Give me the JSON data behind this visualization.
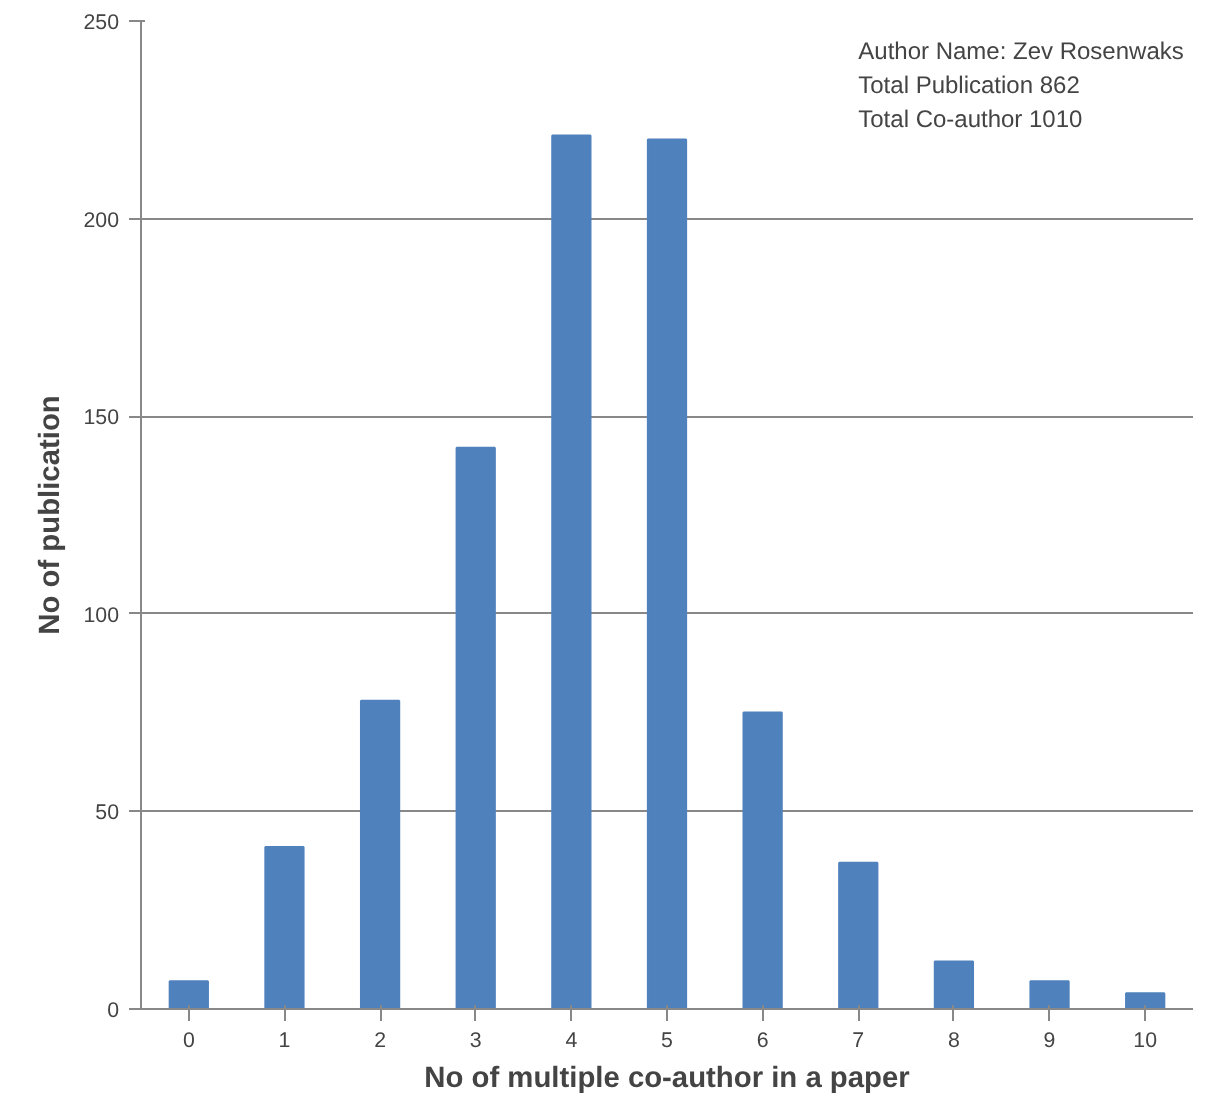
{
  "chart_data": {
    "type": "bar",
    "xlabel": "No of multiple co-author in a paper",
    "ylabel": "No of publication",
    "categories": [
      "0",
      "1",
      "2",
      "3",
      "4",
      "5",
      "6",
      "7",
      "8",
      "9",
      "10"
    ],
    "values": [
      7,
      41,
      78,
      142,
      221,
      220,
      75,
      37,
      12,
      7,
      4
    ],
    "color": "#4f81bd",
    "ylim": [
      0,
      250
    ],
    "yticks": [
      0,
      50,
      100,
      150,
      200,
      250
    ],
    "grid": "y",
    "annotations": [
      "Author Name: Zev Rosenwaks",
      "Total Publication 862",
      "Total Co-author 1010"
    ]
  }
}
